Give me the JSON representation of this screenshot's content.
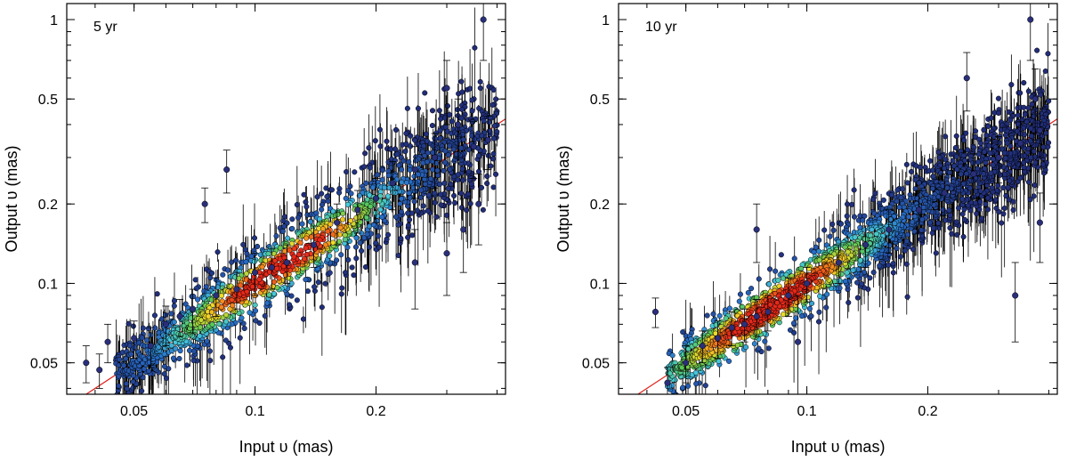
{
  "chart_data": [
    {
      "type": "scatter",
      "panel_label": "5 yr",
      "xlabel": "Input υ (mas)",
      "ylabel": "Output υ (mas)",
      "xscale": "log",
      "yscale": "log",
      "xlim": [
        0.034,
        0.42
      ],
      "ylim": [
        0.038,
        1.15
      ],
      "x_ticks": [
        0.05,
        0.1,
        0.2
      ],
      "x_tick_labels": [
        "0.05",
        "0.1",
        "0.2"
      ],
      "y_ticks": [
        0.05,
        0.1,
        0.2,
        0.5,
        1
      ],
      "y_tick_labels": [
        "0.05",
        "0.1",
        "0.2",
        "0.5",
        "1"
      ],
      "reference_line": "y = x",
      "color_encoding": "point density (blue = low, red = high)",
      "points": [
        {
          "x": 0.038,
          "y": 0.05,
          "err": 0.008
        },
        {
          "x": 0.041,
          "y": 0.047,
          "err": 0.007
        },
        {
          "x": 0.043,
          "y": 0.06,
          "err": 0.01
        },
        {
          "x": 0.075,
          "y": 0.2,
          "err": 0.03
        },
        {
          "x": 0.085,
          "y": 0.27,
          "err": 0.05
        },
        {
          "x": 0.05,
          "y": 0.062,
          "err": 0.01
        },
        {
          "x": 0.055,
          "y": 0.058,
          "err": 0.01
        },
        {
          "x": 0.06,
          "y": 0.07,
          "err": 0.012
        },
        {
          "x": 0.065,
          "y": 0.075,
          "err": 0.012
        },
        {
          "x": 0.07,
          "y": 0.08,
          "err": 0.015
        },
        {
          "x": 0.08,
          "y": 0.09,
          "err": 0.015
        },
        {
          "x": 0.09,
          "y": 0.095,
          "err": 0.015
        },
        {
          "x": 0.1,
          "y": 0.11,
          "err": 0.02
        },
        {
          "x": 0.11,
          "y": 0.115,
          "err": 0.02
        },
        {
          "x": 0.12,
          "y": 0.12,
          "err": 0.02
        },
        {
          "x": 0.14,
          "y": 0.14,
          "err": 0.025
        },
        {
          "x": 0.16,
          "y": 0.17,
          "err": 0.03
        },
        {
          "x": 0.18,
          "y": 0.19,
          "err": 0.035
        },
        {
          "x": 0.2,
          "y": 0.21,
          "err": 0.04
        },
        {
          "x": 0.22,
          "y": 0.24,
          "err": 0.05
        },
        {
          "x": 0.25,
          "y": 0.27,
          "err": 0.06
        },
        {
          "x": 0.28,
          "y": 0.3,
          "err": 0.07
        },
        {
          "x": 0.3,
          "y": 0.55,
          "err": 0.15
        },
        {
          "x": 0.32,
          "y": 0.4,
          "err": 0.1
        },
        {
          "x": 0.35,
          "y": 0.33,
          "err": 0.08
        },
        {
          "x": 0.37,
          "y": 1.0,
          "err": 0.3
        },
        {
          "x": 0.38,
          "y": 0.35,
          "err": 0.08
        },
        {
          "x": 0.33,
          "y": 0.16,
          "err": 0.05
        },
        {
          "x": 0.3,
          "y": 0.13,
          "err": 0.04
        },
        {
          "x": 0.25,
          "y": 0.12,
          "err": 0.04
        },
        {
          "x": 0.36,
          "y": 0.2,
          "err": 0.06
        }
      ]
    },
    {
      "type": "scatter",
      "panel_label": "10 yr",
      "xlabel": "Input υ (mas)",
      "ylabel": "Output υ (mas)",
      "xscale": "log",
      "yscale": "log",
      "xlim": [
        0.034,
        0.42
      ],
      "ylim": [
        0.038,
        1.15
      ],
      "x_ticks": [
        0.05,
        0.1,
        0.2
      ],
      "x_tick_labels": [
        "0.05",
        "0.1",
        "0.2"
      ],
      "y_ticks": [
        0.05,
        0.1,
        0.2,
        0.5,
        1
      ],
      "y_tick_labels": [
        "0.05",
        "0.1",
        "0.2",
        "0.5",
        "1"
      ],
      "reference_line": "y = x",
      "color_encoding": "point density (blue = low, red = high)",
      "points": [
        {
          "x": 0.042,
          "y": 0.078,
          "err": 0.01
        },
        {
          "x": 0.045,
          "y": 0.042,
          "err": 0.006
        },
        {
          "x": 0.05,
          "y": 0.05,
          "err": 0.008
        },
        {
          "x": 0.055,
          "y": 0.058,
          "err": 0.008
        },
        {
          "x": 0.06,
          "y": 0.062,
          "err": 0.01
        },
        {
          "x": 0.065,
          "y": 0.068,
          "err": 0.01
        },
        {
          "x": 0.07,
          "y": 0.07,
          "err": 0.01
        },
        {
          "x": 0.075,
          "y": 0.075,
          "err": 0.012
        },
        {
          "x": 0.08,
          "y": 0.078,
          "err": 0.012
        },
        {
          "x": 0.09,
          "y": 0.09,
          "err": 0.015
        },
        {
          "x": 0.1,
          "y": 0.1,
          "err": 0.015
        },
        {
          "x": 0.12,
          "y": 0.12,
          "err": 0.02
        },
        {
          "x": 0.14,
          "y": 0.14,
          "err": 0.025
        },
        {
          "x": 0.16,
          "y": 0.16,
          "err": 0.03
        },
        {
          "x": 0.19,
          "y": 0.19,
          "err": 0.035
        },
        {
          "x": 0.22,
          "y": 0.22,
          "err": 0.04
        },
        {
          "x": 0.26,
          "y": 0.26,
          "err": 0.05
        },
        {
          "x": 0.3,
          "y": 0.3,
          "err": 0.06
        },
        {
          "x": 0.34,
          "y": 0.34,
          "err": 0.07
        },
        {
          "x": 0.38,
          "y": 0.38,
          "err": 0.08
        },
        {
          "x": 0.36,
          "y": 1.0,
          "err": 0.3
        },
        {
          "x": 0.37,
          "y": 0.5,
          "err": 0.15
        },
        {
          "x": 0.38,
          "y": 0.17,
          "err": 0.05
        },
        {
          "x": 0.33,
          "y": 0.09,
          "err": 0.03
        },
        {
          "x": 0.25,
          "y": 0.6,
          "err": 0.15
        },
        {
          "x": 0.075,
          "y": 0.16,
          "err": 0.04
        },
        {
          "x": 0.095,
          "y": 0.06,
          "err": 0.03
        }
      ]
    }
  ]
}
